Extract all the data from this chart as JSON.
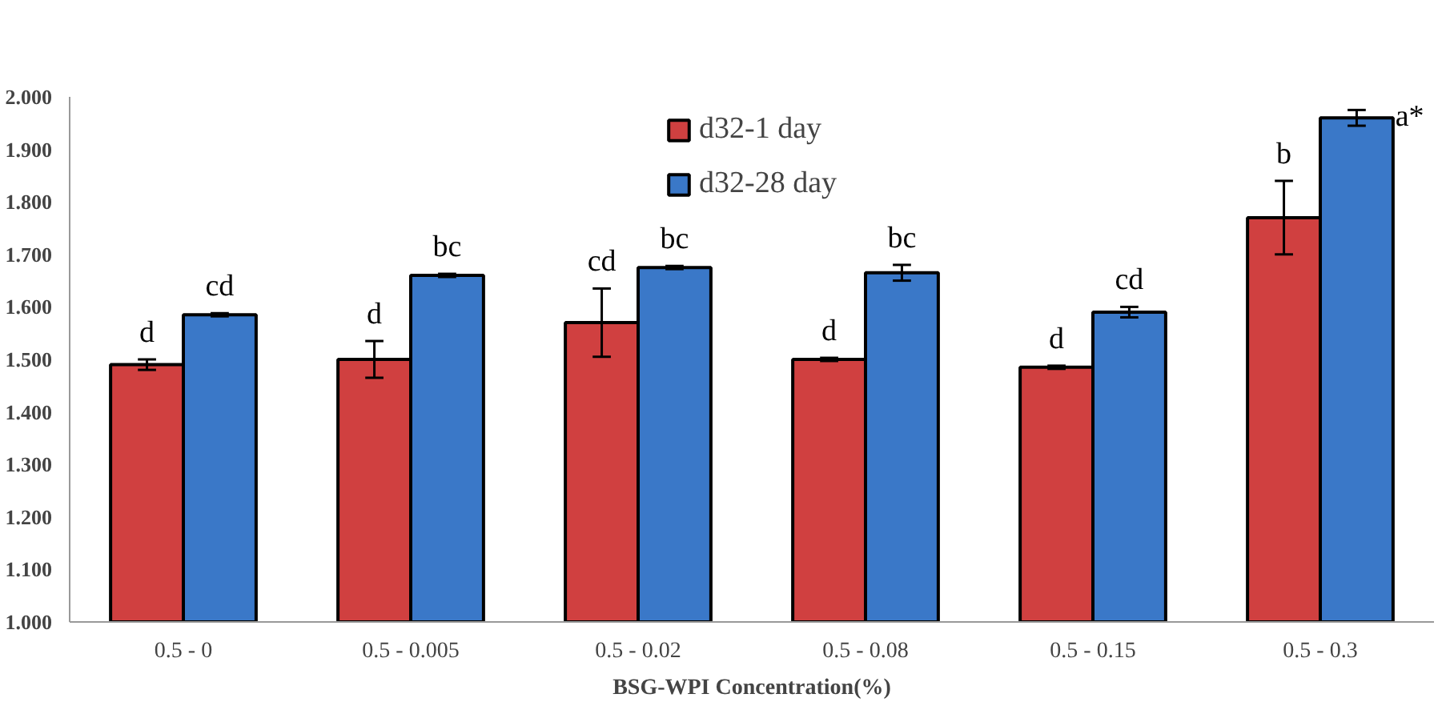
{
  "chart_data": {
    "type": "bar",
    "xlabel": "BSG-WPI Concentration(%)",
    "categories": [
      "0.5 - 0",
      "0.5 - 0.005",
      "0.5 - 0.02",
      "0.5 - 0.08",
      "0.5 - 0.15",
      "0.5 - 0.3"
    ],
    "series": [
      {
        "name": "d32-1 day",
        "color": "#d04040",
        "values": [
          1.49,
          1.5,
          1.57,
          1.5,
          1.485,
          1.77
        ],
        "errors": [
          0.01,
          0.035,
          0.065,
          0.003,
          0.003,
          0.07
        ],
        "value_labels": [
          "d",
          "d",
          "cd",
          "d",
          "d",
          "b"
        ]
      },
      {
        "name": "d32-28 day",
        "color": "#3a78c8",
        "values": [
          1.585,
          1.66,
          1.675,
          1.665,
          1.59,
          1.96
        ],
        "errors": [
          0.003,
          0.003,
          0.003,
          0.015,
          0.01,
          0.015
        ],
        "value_labels": [
          "cd",
          "bc",
          "bc",
          "bc",
          "cd",
          "a*"
        ]
      }
    ],
    "ylim": [
      1.0,
      2.0
    ],
    "yticks": [
      {
        "value": 1.0,
        "label": "1.000"
      },
      {
        "value": 1.1,
        "label": "1.100"
      },
      {
        "value": 1.2,
        "label": "1.200"
      },
      {
        "value": 1.3,
        "label": "1.300"
      },
      {
        "value": 1.4,
        "label": "1.400"
      },
      {
        "value": 1.5,
        "label": "1.500"
      },
      {
        "value": 1.6,
        "label": "1.600"
      },
      {
        "value": 1.7,
        "label": "1.700"
      },
      {
        "value": 1.8,
        "label": "1.800"
      },
      {
        "value": 1.9,
        "label": "1.900"
      },
      {
        "value": 2.0,
        "label": "2.000"
      }
    ],
    "legend": "top",
    "grid": false
  }
}
